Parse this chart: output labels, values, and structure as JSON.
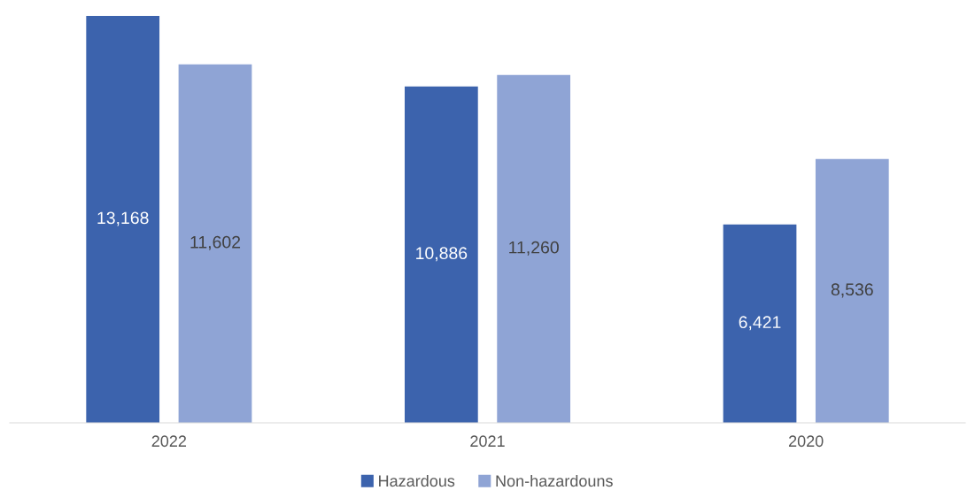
{
  "chart_data": {
    "type": "bar",
    "categories": [
      "2022",
      "2021",
      "2020"
    ],
    "series": [
      {
        "name": "Hazardous",
        "color": "#3c63ad",
        "values": [
          13168,
          10886,
          6421
        ],
        "value_labels": [
          "13,168",
          "10,886",
          "6,421"
        ]
      },
      {
        "name": "Non-hazardouns",
        "color": "#8fa4d5",
        "values": [
          11602,
          11260,
          8536
        ],
        "value_labels": [
          "11,602",
          "11,260",
          "8,536"
        ]
      }
    ],
    "legend": "bottom",
    "grid": false
  }
}
